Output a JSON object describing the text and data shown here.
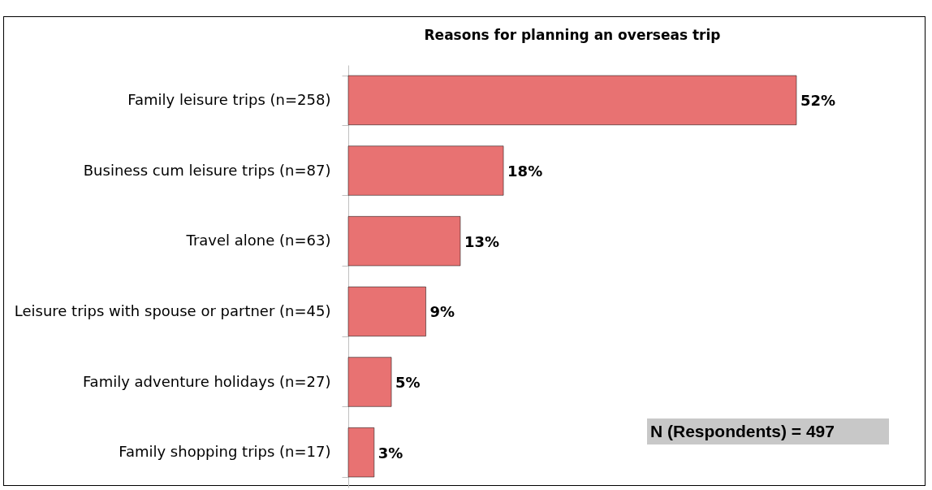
{
  "chart_data": {
    "type": "bar",
    "orientation": "horizontal",
    "title": "Reasons for planning an overseas trip",
    "categories": [
      "Family leisure trips (n=258)",
      "Business cum leisure trips (n=87)",
      "Travel alone (n=63)",
      "Leisure trips with spouse or partner (n=45)",
      "Family adventure holidays (n=27)",
      "Family shopping trips (n=17)"
    ],
    "values": [
      52,
      18,
      13,
      9,
      5,
      3
    ],
    "color": "#e87272",
    "data_labels": true,
    "value_labels": [
      "52%",
      "18%",
      "13%",
      "9%",
      "5%",
      "3%"
    ],
    "annotations": [
      "N (Respondents) = 497"
    ]
  }
}
